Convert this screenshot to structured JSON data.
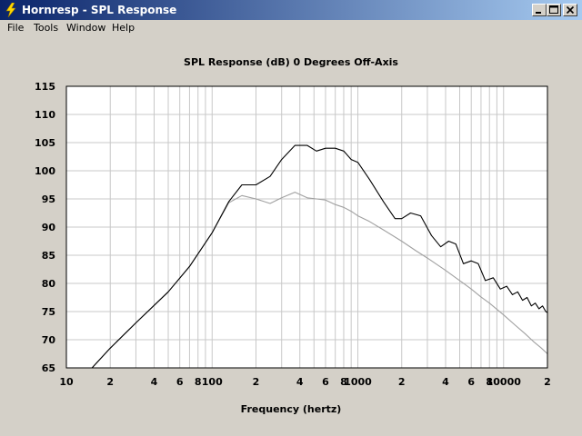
{
  "window": {
    "title": "Hornresp - SPL Response",
    "minimize_icon": "minimize-icon",
    "maximize_icon": "maximize-icon",
    "close_icon": "close-icon",
    "app_icon": "lightning-bolt-icon"
  },
  "menu": {
    "items": [
      {
        "label": "File"
      },
      {
        "label": "Tools"
      },
      {
        "label": "Window"
      },
      {
        "label": "Help"
      }
    ]
  },
  "chart_data": {
    "type": "line",
    "title": "SPL Response (dB)    0 Degrees Off-Axis",
    "xlabel": "Frequency (hertz)",
    "ylabel": "",
    "xscale": "log",
    "xlim": [
      10,
      20000
    ],
    "ylim": [
      65,
      115
    ],
    "grid": true,
    "yticks": [
      "115",
      "110",
      "105",
      "100",
      "95",
      "90",
      "85",
      "80",
      "75",
      "70",
      "65"
    ],
    "xtick_labels": [
      {
        "value": 10,
        "label": "10"
      },
      {
        "value": 20,
        "label": "2"
      },
      {
        "value": 40,
        "label": "4"
      },
      {
        "value": 60,
        "label": "6"
      },
      {
        "value": 80,
        "label": "8"
      },
      {
        "value": 100,
        "label": "100"
      },
      {
        "value": 200,
        "label": "2"
      },
      {
        "value": 400,
        "label": "4"
      },
      {
        "value": 600,
        "label": "6"
      },
      {
        "value": 800,
        "label": "8"
      },
      {
        "value": 1000,
        "label": "1000"
      },
      {
        "value": 2000,
        "label": "2"
      },
      {
        "value": 4000,
        "label": "4"
      },
      {
        "value": 6000,
        "label": "6"
      },
      {
        "value": 8000,
        "label": "8"
      },
      {
        "value": 10000,
        "label": "10000"
      },
      {
        "value": 20000,
        "label": "2"
      }
    ],
    "series": [
      {
        "color": "#000000",
        "x": [
          15,
          20,
          30,
          50,
          70,
          100,
          130,
          160,
          200,
          250,
          300,
          370,
          450,
          520,
          600,
          700,
          800,
          900,
          1000,
          1200,
          1500,
          1800,
          2000,
          2300,
          2700,
          3200,
          3700,
          4200,
          4700,
          5300,
          6000,
          6700,
          7500,
          8500,
          9500,
          10500,
          11500,
          12500,
          13500,
          14500,
          15500,
          16500,
          17500,
          18500,
          19500,
          20000
        ],
        "y": [
          65,
          68.5,
          73,
          78.5,
          83,
          89,
          94.5,
          97.5,
          97.5,
          99,
          102,
          104.5,
          104.5,
          103.5,
          104,
          104,
          103.5,
          102,
          101.5,
          98.5,
          94.5,
          91.5,
          91.5,
          92.5,
          92,
          88.5,
          86.5,
          87.5,
          87,
          83.5,
          84,
          83.5,
          80.5,
          81,
          79,
          79.5,
          78,
          78.5,
          77,
          77.5,
          76,
          76.5,
          75.5,
          76,
          75,
          74.8
        ]
      },
      {
        "color": "#a0a0a0",
        "x": [
          15,
          20,
          30,
          50,
          70,
          100,
          130,
          160,
          200,
          250,
          300,
          370,
          450,
          520,
          600,
          700,
          800,
          900,
          1000,
          1200,
          1500,
          2000,
          2500,
          3000,
          4000,
          5000,
          6000,
          7000,
          8000,
          10000,
          12000,
          14000,
          16000,
          18000,
          20000
        ],
        "y": [
          65,
          68.5,
          73,
          78.5,
          83,
          89,
          94.3,
          95.6,
          95,
          94.2,
          95.2,
          96.2,
          95.2,
          95,
          94.8,
          94,
          93.5,
          92.8,
          92,
          91,
          89.5,
          87.5,
          85.8,
          84.5,
          82.3,
          80.5,
          79,
          77.6,
          76.5,
          74.4,
          72.6,
          71.1,
          69.7,
          68.6,
          67.5
        ]
      }
    ]
  }
}
